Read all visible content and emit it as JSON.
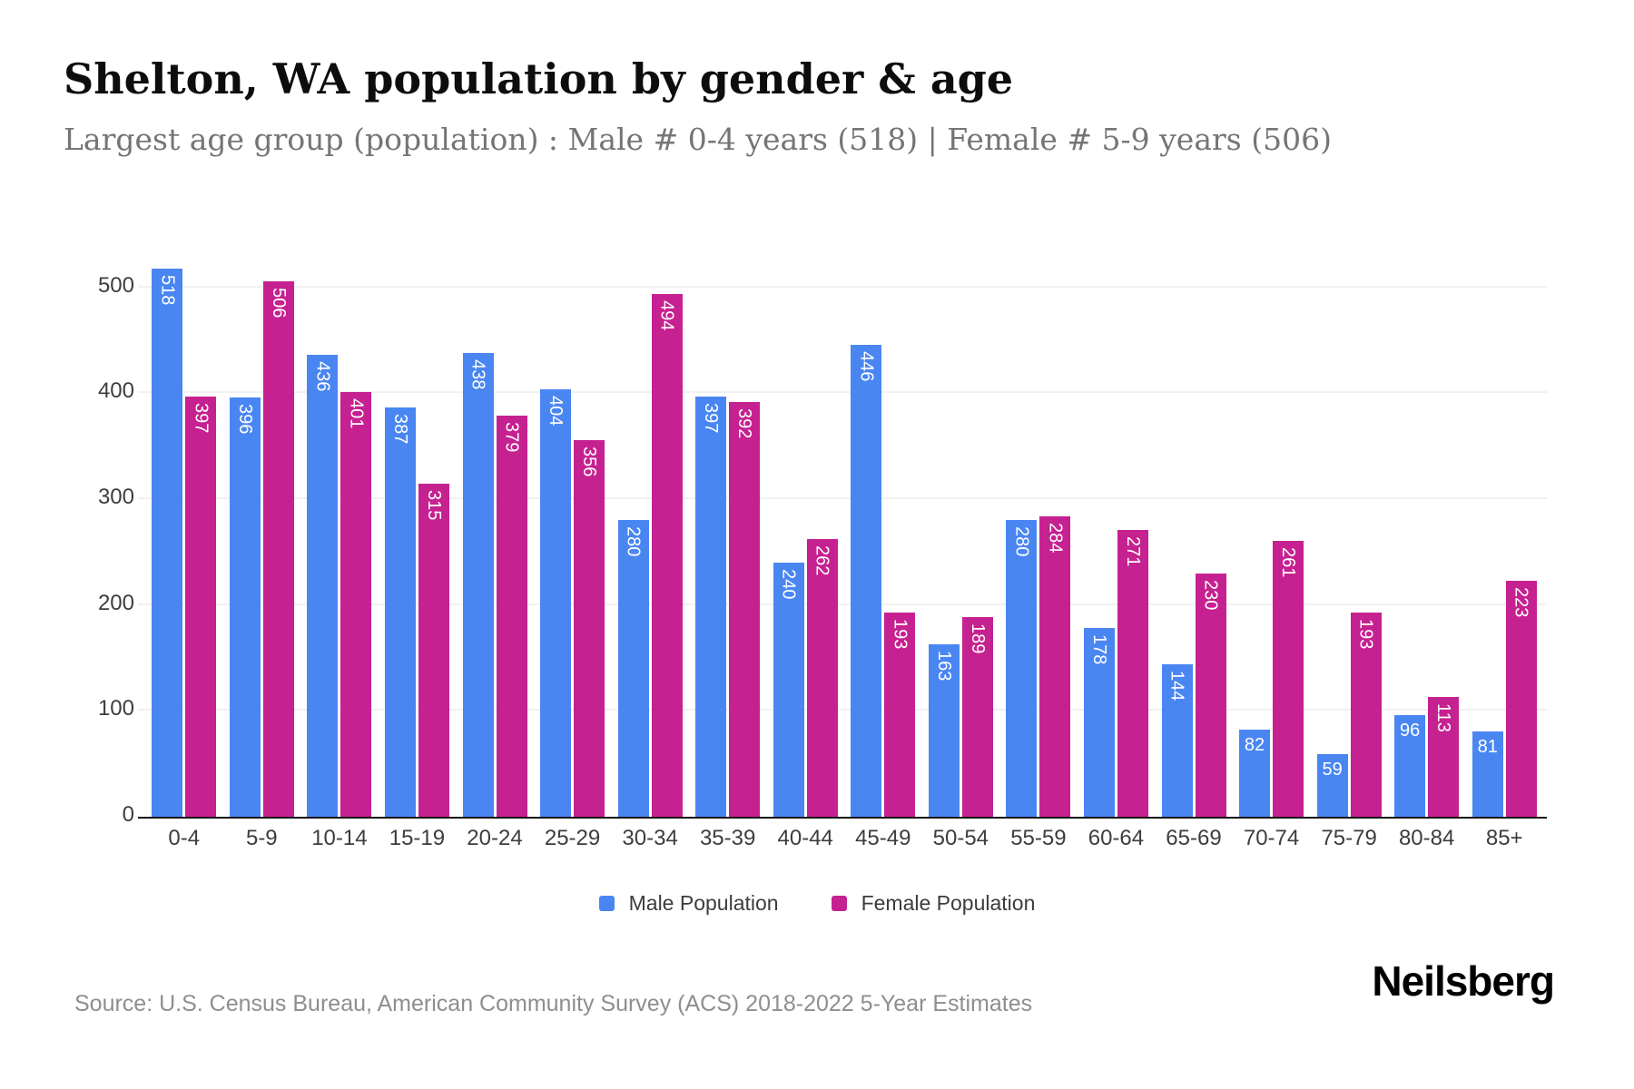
{
  "header": {
    "title": "Shelton, WA population by gender & age",
    "subtitle": "Largest age group (population) : Male # 0-4 years (518) | Female # 5-9 years (506)"
  },
  "chart_data": {
    "type": "bar",
    "title": "Shelton, WA population by gender & age",
    "subtitle": "Largest age group (population) : Male # 0-4 years (518) | Female # 5-9 years (506)",
    "categories": [
      "0-4",
      "5-9",
      "10-14",
      "15-19",
      "20-24",
      "25-29",
      "30-34",
      "35-39",
      "40-44",
      "45-49",
      "50-54",
      "55-59",
      "60-64",
      "65-69",
      "70-74",
      "75-79",
      "80-84",
      "85+"
    ],
    "series": [
      {
        "name": "Male Population",
        "color": "#4a86f2",
        "values": [
          518,
          396,
          436,
          387,
          438,
          404,
          280,
          397,
          240,
          446,
          163,
          280,
          178,
          144,
          82,
          59,
          96,
          81
        ]
      },
      {
        "name": "Female Population",
        "color": "#c62190",
        "values": [
          397,
          506,
          401,
          315,
          379,
          356,
          494,
          392,
          262,
          193,
          189,
          284,
          271,
          230,
          261,
          193,
          113,
          223
        ]
      }
    ],
    "xlabel": "",
    "ylabel": "",
    "ylim": [
      0,
      540
    ],
    "y_ticks": [
      0,
      100,
      200,
      300,
      400,
      500
    ],
    "grid": "horizontal",
    "legend_position": "bottom",
    "bar_label_color": "#ffffff",
    "bar_label_rotation_threshold": 100
  },
  "footer": {
    "source": "Source: U.S. Census Bureau, American Community Survey (ACS) 2018-2022 5-Year Estimates",
    "brand": "Neilsberg"
  }
}
